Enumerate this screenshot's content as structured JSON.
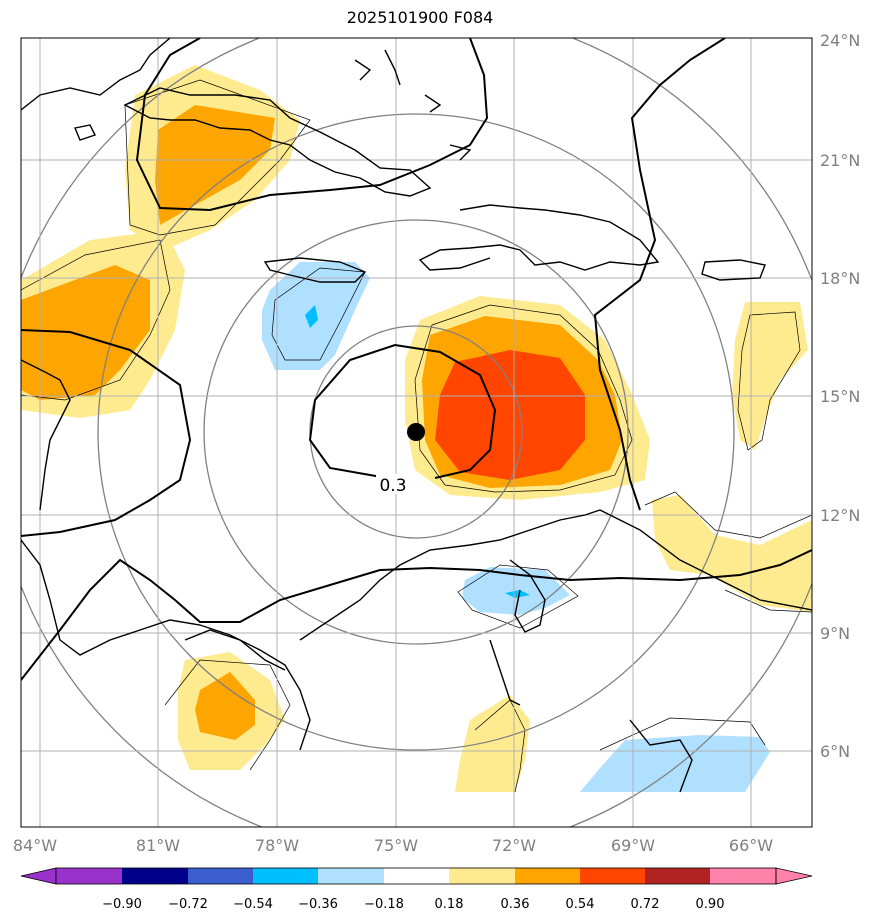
{
  "title": "2025101900 F084",
  "colors": {
    "neg_090": "#9932cc",
    "neg_072": "#00008b",
    "neg_054": "#3a5fcd",
    "neg_036": "#00bfff",
    "neg_018": "#b0e0ff",
    "neutral": "#ffffff",
    "pos_018": "#ffeb8f",
    "pos_036": "#ffa500",
    "pos_054": "#ff4500",
    "pos_072": "#b22222",
    "pos_090": "#ff82ab"
  },
  "map": {
    "lon_range": [
      -85,
      -65
    ],
    "lat_range": [
      4,
      24
    ],
    "lon_ticks": [
      "84°W",
      "81°W",
      "78°W",
      "75°W",
      "72°W",
      "69°W",
      "66°W"
    ],
    "lat_ticks": [
      "24°N",
      "21°N",
      "18°N",
      "15°N",
      "12°N",
      "9°N",
      "6°N"
    ],
    "storm_center": {
      "lon": -74.5,
      "lat": 14.1
    },
    "contour_label": "0.3",
    "grid": true,
    "range_rings": true
  },
  "colorbar": {
    "levels": [
      "−0.90",
      "−0.72",
      "−0.54",
      "−0.36",
      "−0.18",
      "0.18",
      "0.36",
      "0.54",
      "0.72",
      "0.90"
    ],
    "extend": "both"
  }
}
